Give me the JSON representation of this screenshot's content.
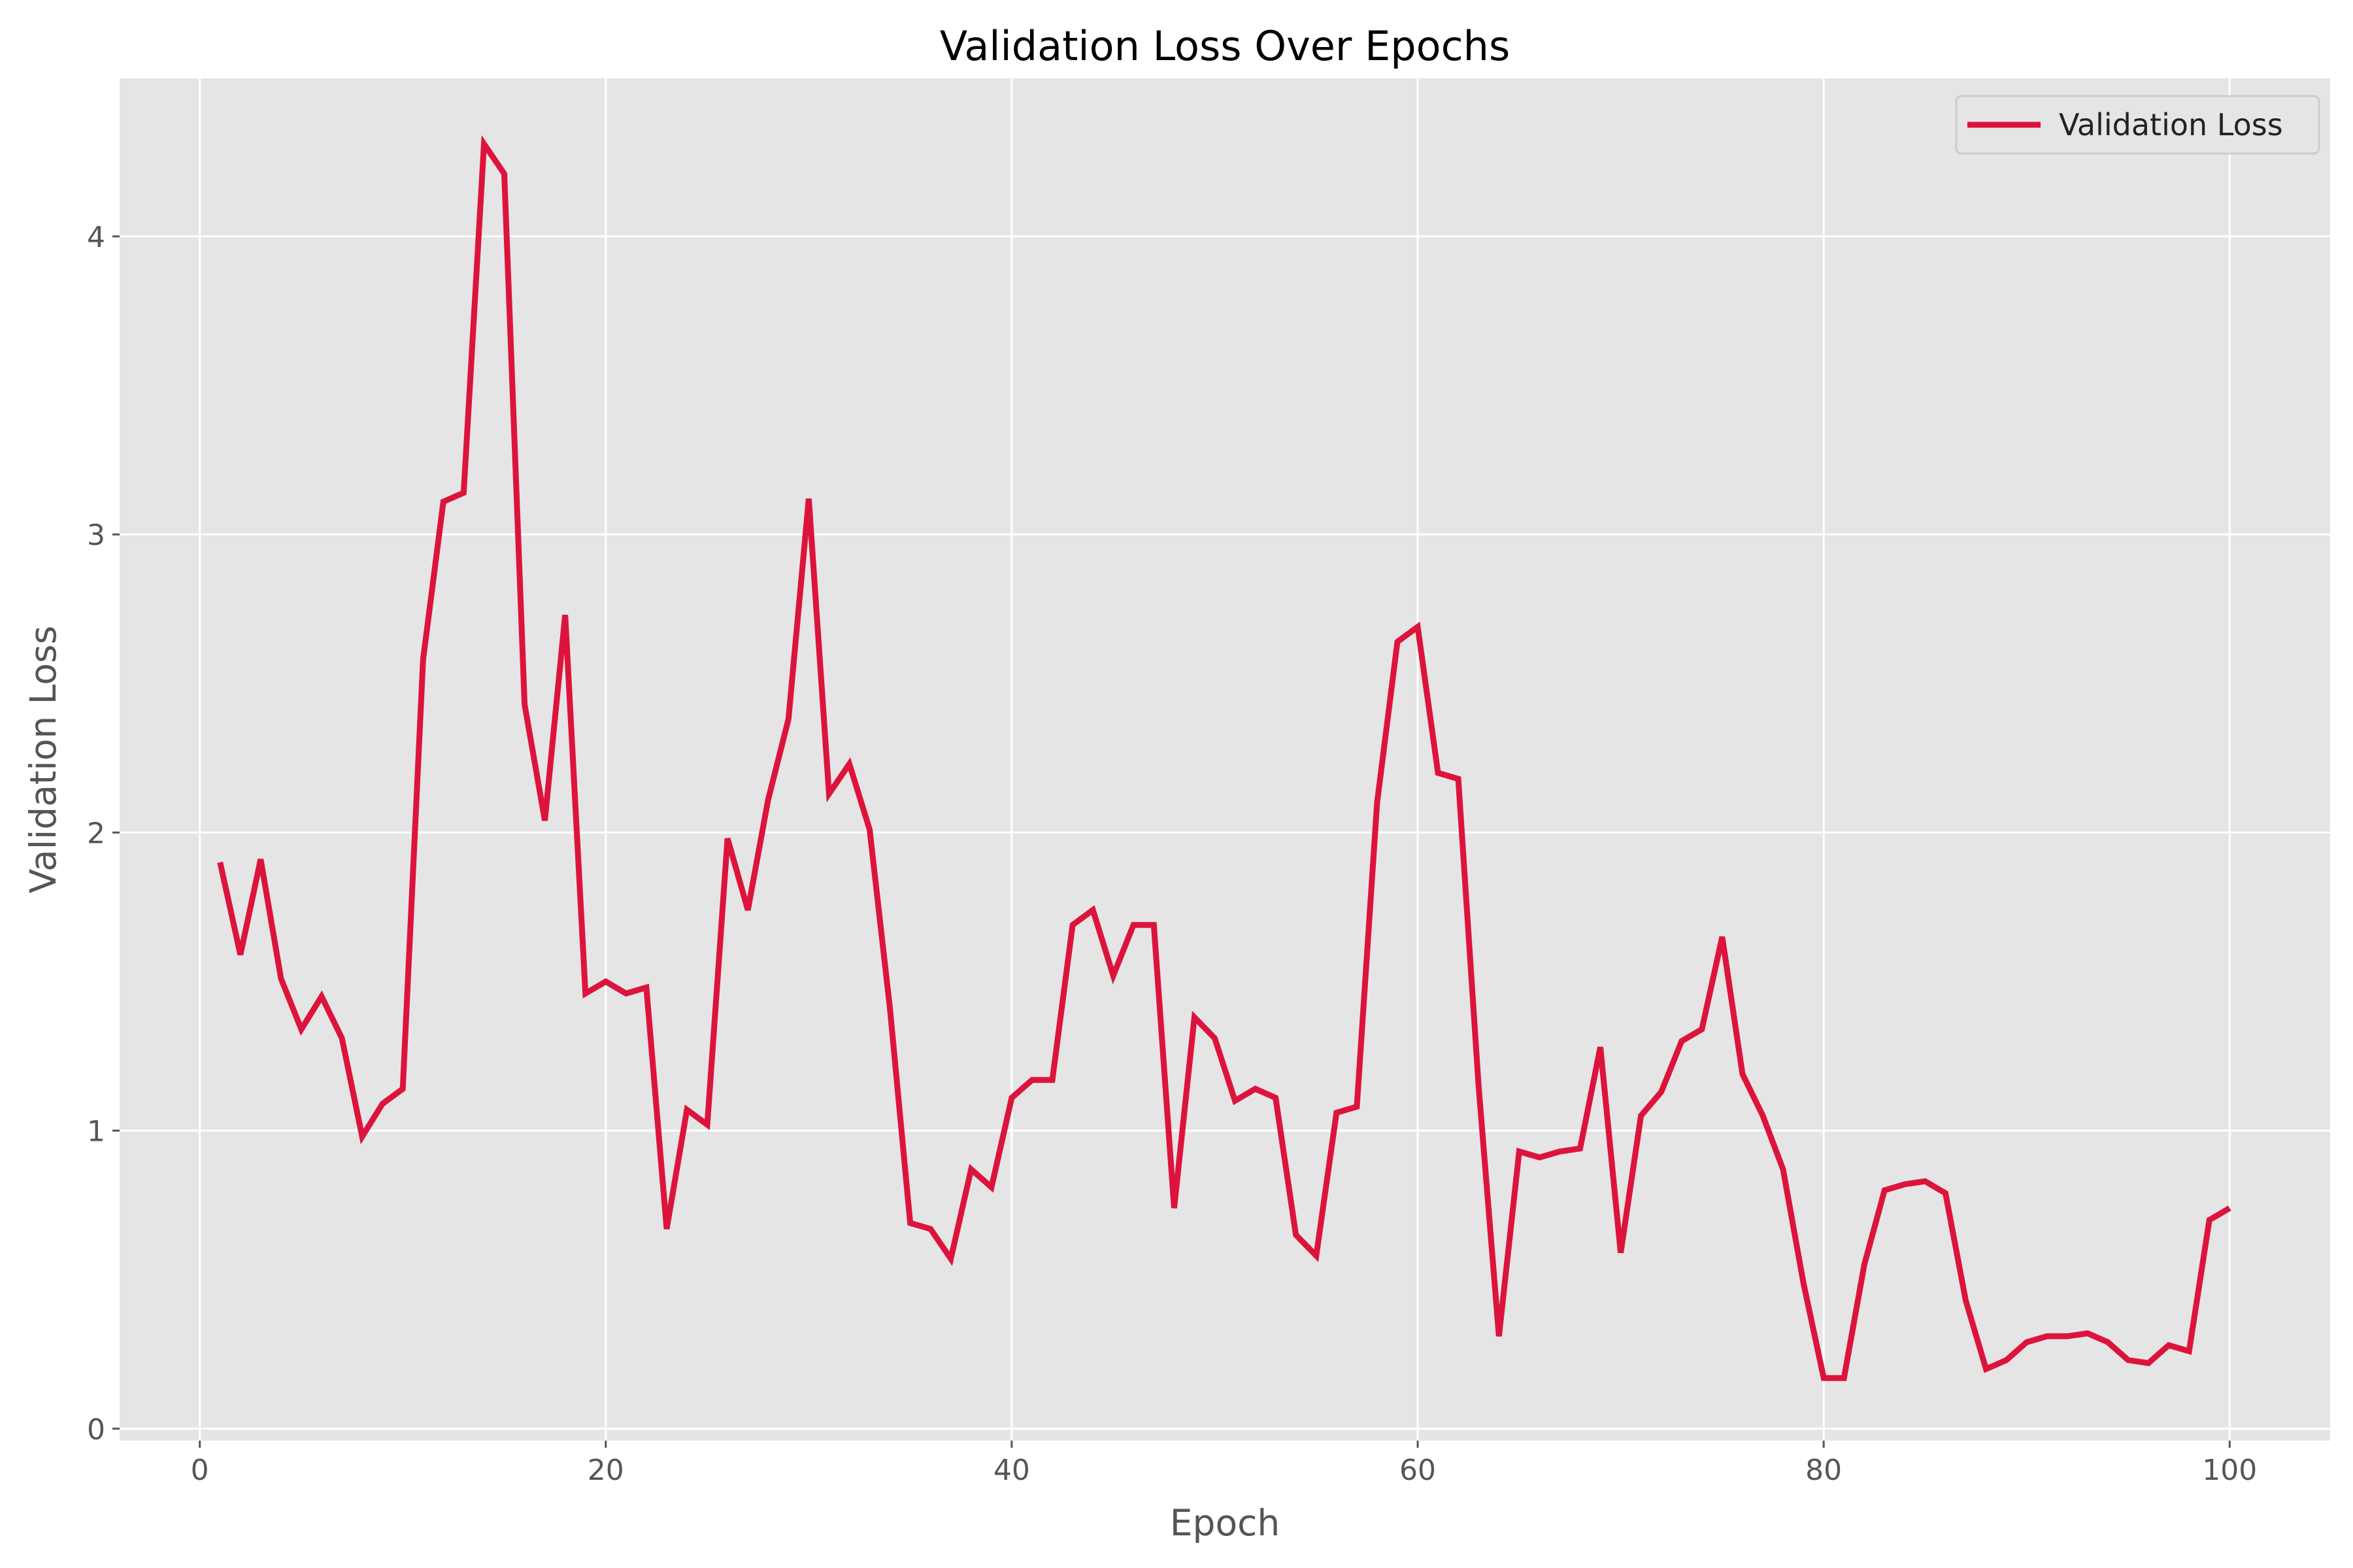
{
  "chart_data": {
    "type": "line",
    "title": "Validation Loss Over Epochs",
    "xlabel": "Epoch",
    "ylabel": "Validation Loss",
    "xlim": [
      -3.95,
      104.95
    ],
    "ylim": [
      -0.04,
      4.53
    ],
    "xticks": [
      0,
      20,
      40,
      60,
      80,
      100
    ],
    "yticks": [
      0,
      1,
      2,
      3,
      4
    ],
    "xtick_labels": [
      "0",
      "20",
      "40",
      "60",
      "80",
      "100"
    ],
    "ytick_labels": [
      "0",
      "1",
      "2",
      "3",
      "4"
    ],
    "grid": true,
    "legend_position": "top-right",
    "series": [
      {
        "name": "Validation Loss",
        "color": "#dc143c",
        "x": [
          1,
          2,
          3,
          4,
          5,
          6,
          7,
          8,
          9,
          10,
          11,
          12,
          13,
          14,
          15,
          16,
          17,
          18,
          19,
          20,
          21,
          22,
          23,
          24,
          25,
          26,
          27,
          28,
          29,
          30,
          31,
          32,
          33,
          34,
          35,
          36,
          37,
          38,
          39,
          40,
          41,
          42,
          43,
          44,
          45,
          46,
          47,
          48,
          49,
          50,
          51,
          52,
          53,
          54,
          55,
          56,
          57,
          58,
          59,
          60,
          61,
          62,
          63,
          64,
          65,
          66,
          67,
          68,
          69,
          70,
          71,
          72,
          73,
          74,
          75,
          76,
          77,
          78,
          79,
          80,
          81,
          82,
          83,
          84,
          85,
          86,
          87,
          88,
          89,
          90,
          91,
          92,
          93,
          94,
          95,
          96,
          97,
          98,
          99,
          100
        ],
        "values": [
          1.9,
          1.59,
          1.91,
          1.51,
          1.34,
          1.45,
          1.31,
          0.98,
          1.09,
          1.14,
          2.58,
          3.11,
          3.14,
          4.31,
          4.21,
          2.43,
          2.04,
          2.73,
          1.46,
          1.5,
          1.46,
          1.48,
          0.67,
          1.07,
          1.02,
          1.98,
          1.74,
          2.11,
          2.38,
          3.12,
          2.13,
          2.23,
          2.01,
          1.41,
          0.69,
          0.67,
          0.57,
          0.87,
          0.81,
          1.11,
          1.17,
          1.17,
          1.69,
          1.74,
          1.52,
          1.69,
          1.69,
          0.74,
          1.38,
          1.31,
          1.1,
          1.14,
          1.11,
          0.65,
          0.58,
          1.06,
          1.08,
          2.1,
          2.64,
          2.69,
          2.2,
          2.18,
          1.15,
          0.31,
          0.93,
          0.91,
          0.93,
          0.94,
          1.28,
          0.59,
          1.05,
          1.13,
          1.3,
          1.34,
          1.65,
          1.19,
          1.05,
          0.87,
          0.49,
          0.17,
          0.17,
          0.55,
          0.8,
          0.82,
          0.83,
          0.79,
          0.43,
          0.2,
          0.23,
          0.29,
          0.31,
          0.31,
          0.32,
          0.29,
          0.23,
          0.22,
          0.28,
          0.26,
          0.7,
          0.74
        ]
      }
    ]
  }
}
